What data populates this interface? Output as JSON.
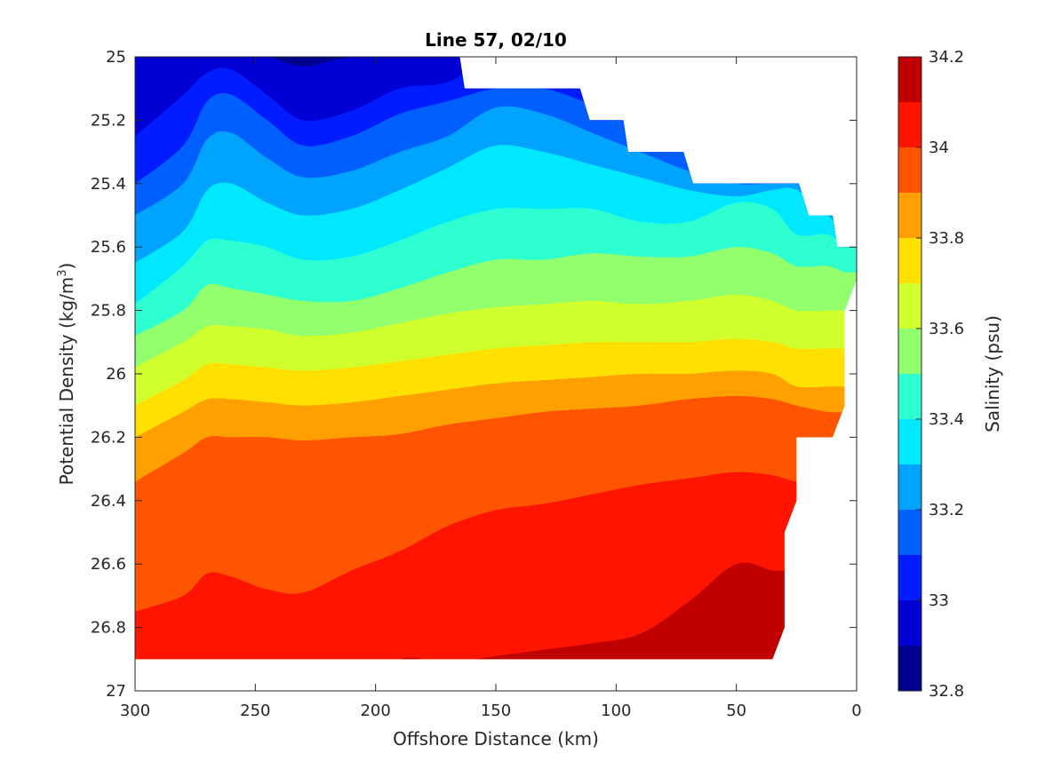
{
  "chart_data": {
    "type": "filled-contour",
    "title": "Line 57, 02/10",
    "xlabel": "Offshore Distance (km)",
    "ylabel_main": "Potential Density (kg/m",
    "ylabel_sup": "3",
    "ylabel_close": ")",
    "colorbar_label": "Salinity (psu)",
    "xlim": [
      300,
      0
    ],
    "ylim": [
      25,
      27
    ],
    "x_reversed": true,
    "y_reversed": true,
    "x_ticks": [
      300,
      250,
      200,
      150,
      100,
      50,
      0
    ],
    "x_tick_labels": [
      "300",
      "250",
      "200",
      "150",
      "100",
      "50",
      "0"
    ],
    "y_ticks": [
      25,
      25.2,
      25.4,
      25.6,
      25.8,
      26,
      26.2,
      26.4,
      26.6,
      26.8,
      27
    ],
    "y_tick_labels": [
      "25",
      "25.2",
      "25.4",
      "25.6",
      "25.8",
      "26",
      "26.2",
      "26.4",
      "26.6",
      "26.8",
      "27"
    ],
    "colorbar_ticks": [
      32.8,
      33,
      33.2,
      33.4,
      33.6,
      33.8,
      34,
      34.2
    ],
    "colorbar_tick_labels": [
      "32.8",
      "33",
      "33.2",
      "33.4",
      "33.6",
      "33.8",
      "34",
      "34.2"
    ],
    "levels": [
      32.8,
      32.9,
      33.0,
      33.1,
      33.2,
      33.3,
      33.4,
      33.5,
      33.6,
      33.7,
      33.8,
      33.9,
      34.0,
      34.1,
      34.2
    ],
    "colors": [
      "#00008f",
      "#0000d4",
      "#001cff",
      "#0060ff",
      "#00a4ff",
      "#00e8ff",
      "#2dffd1",
      "#92ff6c",
      "#d0ff2e",
      "#ffe000",
      "#ffa000",
      "#ff5400",
      "#ff1400",
      "#c00000"
    ],
    "contours": {
      "note_x": [
        300,
        280,
        270,
        260,
        245,
        230,
        210,
        190,
        170,
        150,
        130,
        110,
        90,
        70,
        50,
        35,
        25,
        12,
        5
      ],
      "boundaries": [
        {
          "level": 32.9,
          "y": [
            25.0,
            25.0,
            25.0,
            25.0,
            25.0,
            25.03,
            25.0,
            25.0,
            25.0,
            25.0,
            25.0,
            25.0,
            25.0,
            25.0,
            25.0,
            25.0,
            25.0,
            25.0,
            25.0
          ]
        },
        {
          "level": 33.0,
          "y": [
            25.25,
            25.12,
            25.05,
            25.04,
            25.12,
            25.2,
            25.17,
            25.1,
            25.08,
            25.0,
            25.0,
            25.0,
            25.0,
            25.0,
            25.0,
            25.0,
            25.0,
            25.0,
            25.0
          ]
        },
        {
          "level": 33.1,
          "y": [
            25.4,
            25.28,
            25.14,
            25.12,
            25.2,
            25.28,
            25.25,
            25.18,
            25.14,
            25.1,
            25.1,
            25.15,
            25.2,
            25.2,
            25.2,
            25.2,
            25.2,
            25.2,
            25.2
          ]
        },
        {
          "level": 33.2,
          "y": [
            25.5,
            25.4,
            25.26,
            25.24,
            25.32,
            25.38,
            25.36,
            25.3,
            25.25,
            25.16,
            25.18,
            25.24,
            25.3,
            25.36,
            25.4,
            25.4,
            25.4,
            25.4,
            25.4
          ]
        },
        {
          "level": 33.3,
          "y": [
            25.65,
            25.55,
            25.42,
            25.4,
            25.46,
            25.5,
            25.48,
            25.42,
            25.35,
            25.28,
            25.3,
            25.34,
            25.38,
            25.42,
            25.44,
            25.42,
            25.42,
            25.5,
            25.55
          ]
        },
        {
          "level": 33.4,
          "y": [
            25.78,
            25.66,
            25.58,
            25.58,
            25.6,
            25.64,
            25.63,
            25.58,
            25.52,
            25.48,
            25.48,
            25.48,
            25.52,
            25.52,
            25.46,
            25.48,
            25.56,
            25.56,
            25.6
          ]
        },
        {
          "level": 33.5,
          "y": [
            25.88,
            25.8,
            25.72,
            25.73,
            25.75,
            25.77,
            25.77,
            25.73,
            25.68,
            25.64,
            25.64,
            25.62,
            25.63,
            25.63,
            25.6,
            25.62,
            25.66,
            25.66,
            25.68
          ]
        },
        {
          "level": 33.6,
          "y": [
            25.98,
            25.9,
            25.85,
            25.85,
            25.86,
            25.88,
            25.87,
            25.84,
            25.81,
            25.79,
            25.78,
            25.77,
            25.78,
            25.77,
            25.75,
            25.77,
            25.8,
            25.8,
            25.8
          ]
        },
        {
          "level": 33.7,
          "y": [
            26.1,
            26.02,
            25.97,
            25.97,
            25.98,
            25.99,
            25.98,
            25.96,
            25.94,
            25.92,
            25.91,
            25.9,
            25.9,
            25.9,
            25.89,
            25.9,
            25.92,
            25.92,
            25.92
          ]
        },
        {
          "level": 33.8,
          "y": [
            26.2,
            26.12,
            26.08,
            26.08,
            26.09,
            26.1,
            26.09,
            26.07,
            26.05,
            26.03,
            26.02,
            26.01,
            26.0,
            26.0,
            25.99,
            26.0,
            26.04,
            26.04,
            26.04
          ]
        },
        {
          "level": 33.9,
          "y": [
            26.34,
            26.25,
            26.2,
            26.2,
            26.2,
            26.21,
            26.2,
            26.19,
            26.16,
            26.14,
            26.12,
            26.11,
            26.1,
            26.08,
            26.07,
            26.08,
            26.1,
            26.12,
            26.12
          ]
        },
        {
          "level": 34.0,
          "y": [
            26.75,
            26.7,
            26.63,
            26.64,
            26.68,
            26.69,
            26.62,
            26.56,
            26.48,
            26.43,
            26.41,
            26.38,
            26.35,
            26.33,
            26.31,
            26.32,
            26.34,
            26.34,
            26.34
          ]
        },
        {
          "level": 34.1,
          "y": [
            27.0,
            27.0,
            27.0,
            27.0,
            27.0,
            27.0,
            27.0,
            26.9,
            26.91,
            26.89,
            26.87,
            26.85,
            26.82,
            26.72,
            26.6,
            26.62,
            26.62,
            26.62,
            26.62
          ]
        }
      ],
      "domain": {
        "top_x": [
          300,
          165,
          163,
          115,
          111,
          97,
          95,
          72,
          68,
          24,
          20,
          10,
          8,
          0
        ],
        "top_y": [
          25.0,
          25.0,
          25.1,
          25.1,
          25.2,
          25.2,
          25.3,
          25.3,
          25.4,
          25.4,
          25.5,
          25.5,
          25.6,
          25.6
        ],
        "right_x": [
          0,
          0,
          5,
          5,
          10,
          25,
          25,
          30,
          30,
          35
        ],
        "right_y": [
          25.6,
          25.7,
          25.8,
          26.1,
          26.2,
          26.2,
          26.4,
          26.5,
          26.8,
          26.9
        ],
        "bottom_y": 26.9
      }
    }
  }
}
